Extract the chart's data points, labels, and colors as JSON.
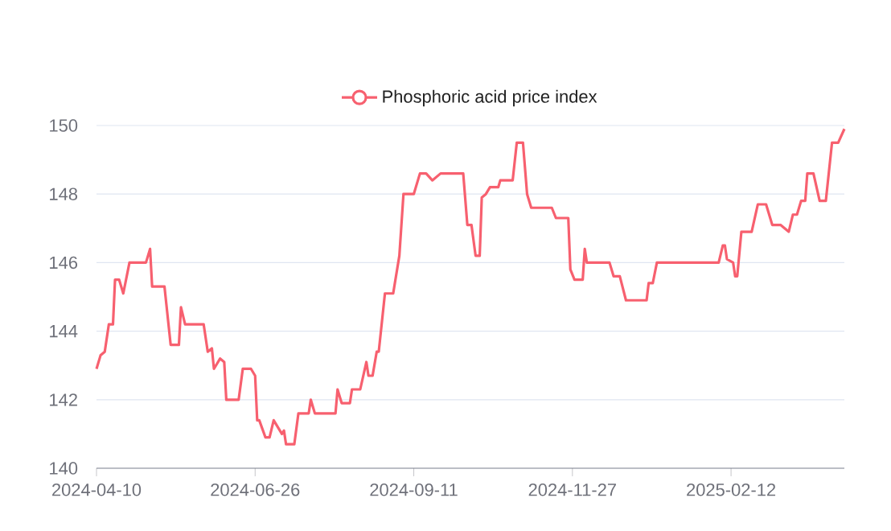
{
  "chart_data": {
    "type": "line",
    "legend": "top",
    "grid": "y",
    "xlim": [
      "2024-04-10",
      "2025-04-08"
    ],
    "xticks": [
      "2024-04-10",
      "2024-06-26",
      "2024-09-11",
      "2024-11-27",
      "2025-02-12"
    ],
    "ylim": [
      140,
      150
    ],
    "yticks": [
      140,
      142,
      144,
      146,
      148,
      150
    ],
    "x": [
      "2024-04-10",
      "2024-04-12",
      "2024-04-14",
      "2024-04-16",
      "2024-04-18",
      "2024-04-19",
      "2024-04-21",
      "2024-04-23",
      "2024-04-26",
      "2024-05-04",
      "2024-05-06",
      "2024-05-07",
      "2024-05-13",
      "2024-05-16",
      "2024-05-20",
      "2024-05-21",
      "2024-05-23",
      "2024-06-01",
      "2024-06-03",
      "2024-06-05",
      "2024-06-06",
      "2024-06-09",
      "2024-06-11",
      "2024-06-12",
      "2024-06-18",
      "2024-06-20",
      "2024-06-24",
      "2024-06-26",
      "2024-06-27",
      "2024-06-28",
      "2024-07-01",
      "2024-07-03",
      "2024-07-05",
      "2024-07-07",
      "2024-07-09",
      "2024-07-10",
      "2024-07-11",
      "2024-07-15",
      "2024-07-17",
      "2024-07-22",
      "2024-07-23",
      "2024-07-25",
      "2024-08-04",
      "2024-08-05",
      "2024-08-07",
      "2024-08-11",
      "2024-08-12",
      "2024-08-16",
      "2024-08-19",
      "2024-08-20",
      "2024-08-22",
      "2024-08-24",
      "2024-08-25",
      "2024-08-28",
      "2024-09-01",
      "2024-09-04",
      "2024-09-06",
      "2024-09-08",
      "2024-09-11",
      "2024-09-14",
      "2024-09-17",
      "2024-09-20",
      "2024-09-24",
      "2024-10-05",
      "2024-10-07",
      "2024-10-09",
      "2024-10-11",
      "2024-10-13",
      "2024-10-14",
      "2024-10-16",
      "2024-10-18",
      "2024-10-22",
      "2024-10-23",
      "2024-10-29",
      "2024-10-31",
      "2024-11-03",
      "2024-11-05",
      "2024-11-07",
      "2024-11-17",
      "2024-11-19",
      "2024-11-25",
      "2024-11-26",
      "2024-11-28",
      "2024-12-02",
      "2024-12-03",
      "2024-12-04",
      "2024-12-08",
      "2024-12-15",
      "2024-12-17",
      "2024-12-20",
      "2024-12-23",
      "2025-01-02",
      "2025-01-03",
      "2025-01-05",
      "2025-01-07",
      "2025-02-06",
      "2025-02-08",
      "2025-02-09",
      "2025-02-10",
      "2025-02-13",
      "2025-02-14",
      "2025-02-15",
      "2025-02-17",
      "2025-02-22",
      "2025-02-25",
      "2025-03-01",
      "2025-03-04",
      "2025-03-08",
      "2025-03-12",
      "2025-03-14",
      "2025-03-16",
      "2025-03-18",
      "2025-03-20",
      "2025-03-21",
      "2025-03-24",
      "2025-03-27",
      "2025-03-30",
      "2025-04-02",
      "2025-04-05",
      "2025-04-08"
    ],
    "series": [
      {
        "name": "Phosphoric acid price index",
        "color": "#f7606f",
        "values": [
          142.9,
          143.3,
          143.4,
          144.2,
          144.2,
          145.5,
          145.5,
          145.1,
          146.0,
          146.0,
          146.4,
          145.3,
          145.3,
          143.6,
          143.6,
          144.7,
          144.2,
          144.2,
          143.4,
          143.5,
          142.9,
          143.2,
          143.1,
          142.0,
          142.0,
          142.9,
          142.9,
          142.7,
          141.4,
          141.4,
          140.9,
          140.9,
          141.4,
          141.2,
          141.0,
          141.1,
          140.7,
          140.7,
          141.6,
          141.6,
          142.0,
          141.6,
          141.6,
          142.3,
          141.9,
          141.9,
          142.3,
          142.3,
          143.1,
          142.7,
          142.7,
          143.4,
          143.4,
          145.1,
          145.1,
          146.2,
          148.0,
          148.0,
          148.0,
          148.6,
          148.6,
          148.4,
          148.6,
          148.6,
          147.1,
          147.1,
          146.2,
          146.2,
          147.9,
          148.0,
          148.2,
          148.2,
          148.4,
          148.4,
          149.5,
          149.5,
          148.0,
          147.6,
          147.6,
          147.3,
          147.3,
          145.8,
          145.5,
          145.5,
          146.4,
          146.0,
          146.0,
          146.0,
          145.6,
          145.6,
          144.9,
          144.9,
          145.4,
          145.4,
          146.0,
          146.0,
          146.5,
          146.5,
          146.1,
          146.0,
          145.6,
          145.6,
          146.9,
          146.9,
          147.7,
          147.7,
          147.1,
          147.1,
          146.9,
          147.4,
          147.4,
          147.8,
          147.8,
          148.6,
          148.6,
          147.8,
          147.8,
          149.5,
          149.5,
          149.9
        ]
      }
    ]
  }
}
